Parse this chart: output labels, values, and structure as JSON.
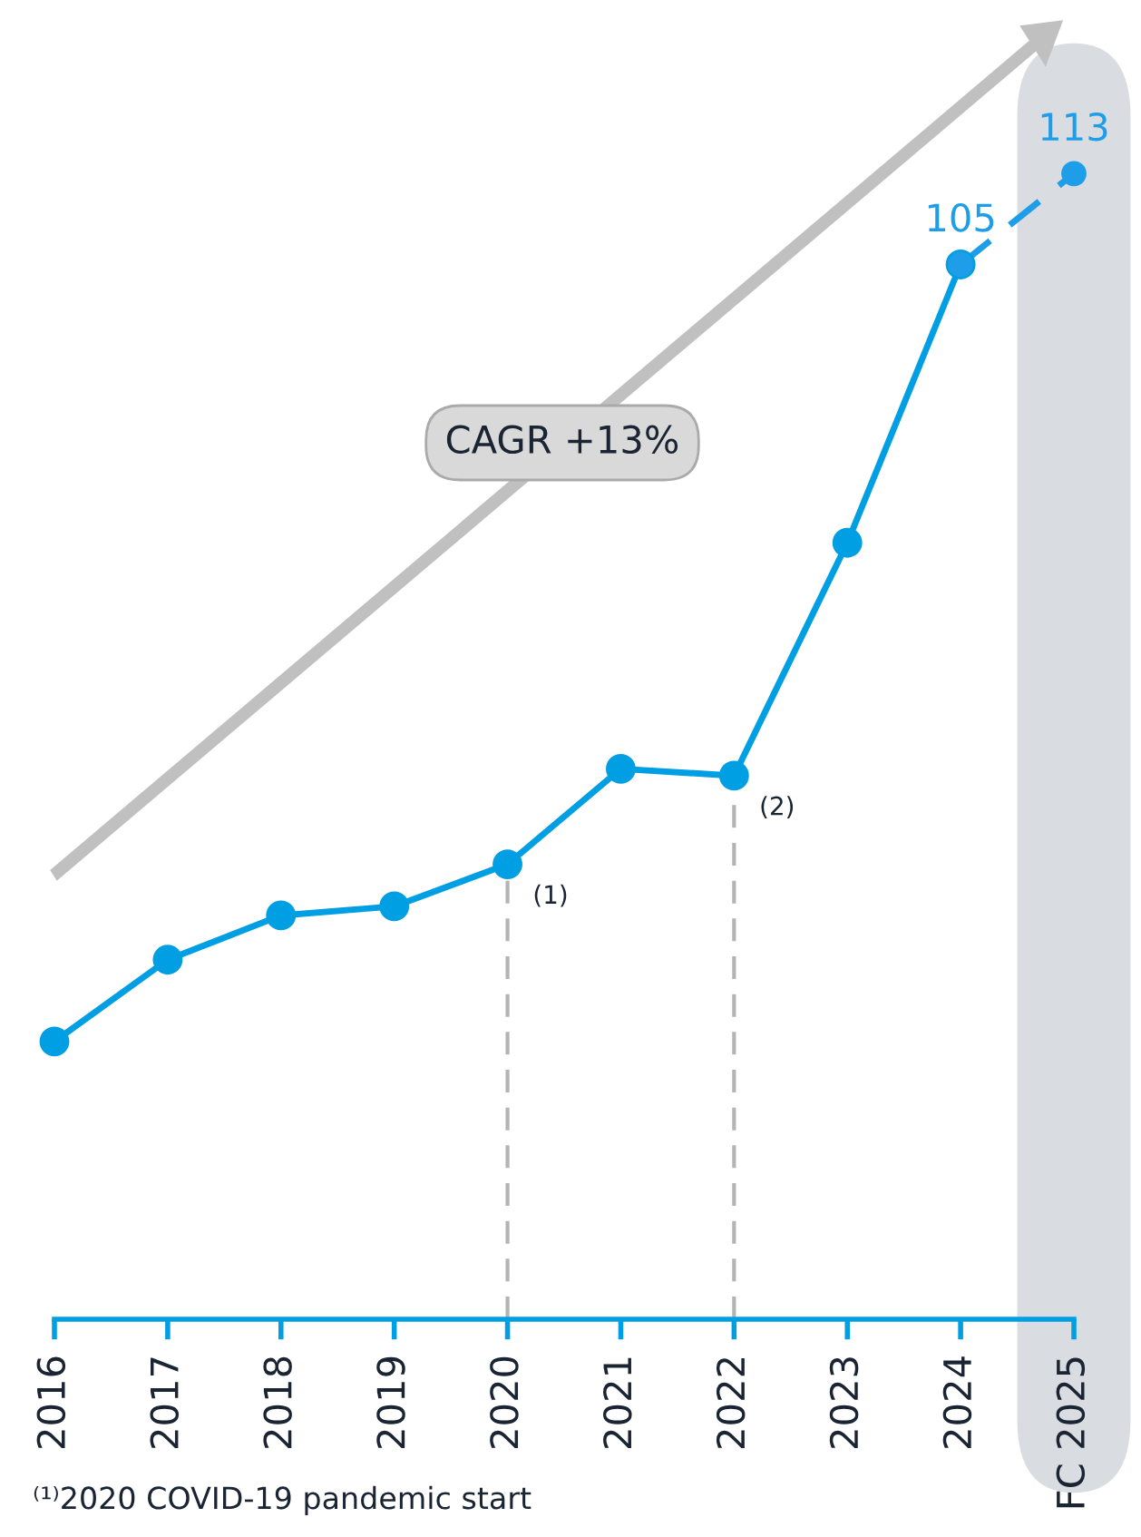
{
  "chart_data": {
    "type": "line",
    "categories": [
      "2016",
      "2017",
      "2018",
      "2019",
      "2020",
      "2021",
      "2022",
      "2023",
      "2024",
      "FC 2025"
    ],
    "series": [
      {
        "color": "#009fe3",
        "line_style": "solid",
        "values": [
          36.6,
          43.8,
          47.7,
          48.5,
          52.2,
          60.6,
          60.0,
          80.5,
          105,
          null
        ]
      },
      {
        "color": "#1e9de8",
        "line_style": "dashed",
        "values": [
          null,
          null,
          null,
          null,
          null,
          null,
          null,
          null,
          105,
          113
        ],
        "value_labels": [
          null,
          null,
          null,
          null,
          null,
          null,
          null,
          null,
          "105",
          "113"
        ]
      }
    ],
    "marker": "circle",
    "tick_labels": "x",
    "grid": false,
    "ref_lines": [
      {
        "axis": "x",
        "value": "2020",
        "label": "(1)",
        "color": "#b4b4b4",
        "line_style": "dashed"
      },
      {
        "axis": "x",
        "value": "2022",
        "label": "(2)",
        "color": "#b4b4b4",
        "line_style": "dashed"
      }
    ],
    "bands": [
      {
        "axis": "x",
        "from": "FC 2025",
        "to": "FC 2025",
        "color": "#d9dce0"
      }
    ],
    "annotations": [
      "CAGR +13%",
      "⁽¹⁾2020 COVID-19 pandemic start"
    ]
  }
}
